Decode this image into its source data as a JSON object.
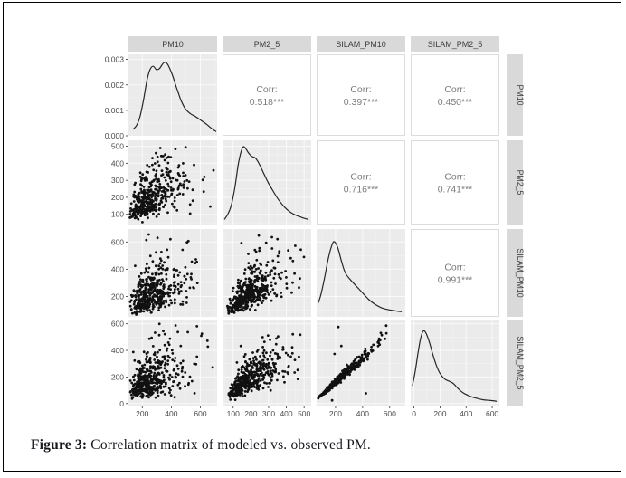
{
  "figure": {
    "caption_label": "Figure 3:",
    "caption_text": " Correlation matrix of modeled vs. observed PM."
  },
  "colors": {
    "page_bg": "#ffffff",
    "frame": "#000000",
    "panel_bg": "#ebebeb",
    "corr_panel_bg": "#ffffff",
    "corr_panel_border": "#dcdcdc",
    "strip_bg": "#d9d9d9",
    "strip_text": "#3d3d3d",
    "grid_major": "#fafafa",
    "grid_minor": "#f3f3f3",
    "point": "#111111",
    "density_line": "#262626",
    "corr_text": "#7c7c7c",
    "tick_text": "#4a4a4a",
    "tick_mark": "#333333",
    "caption_text": "#16161d"
  },
  "chart_data": {
    "type": "scatter",
    "subtype": "scatterplot-matrix (ggpairs)",
    "title": "",
    "variables": [
      "PM10",
      "PM2_5",
      "SILAM_PM10",
      "SILAM_PM2_5"
    ],
    "corr_label": "Corr:",
    "corr_cells": [
      {
        "r": 0,
        "c": 1,
        "text": "0.518***",
        "value": 0.518
      },
      {
        "r": 0,
        "c": 2,
        "text": "0.397***",
        "value": 0.397
      },
      {
        "r": 0,
        "c": 3,
        "text": "0.450***",
        "value": 0.45
      },
      {
        "r": 1,
        "c": 2,
        "text": "0.716***",
        "value": 0.716
      },
      {
        "r": 1,
        "c": 3,
        "text": "0.741***",
        "value": 0.741
      },
      {
        "r": 2,
        "c": 3,
        "text": "0.991***",
        "value": 0.991
      }
    ],
    "col_axes": [
      {
        "variable": "PM10",
        "range": [
          105,
          715
        ],
        "ticks": [
          {
            "v": 200,
            "label": "200"
          },
          {
            "v": 400,
            "label": "400"
          },
          {
            "v": 600,
            "label": "600"
          }
        ]
      },
      {
        "variable": "PM2_5",
        "range": [
          40,
          540
        ],
        "ticks": [
          {
            "v": 100,
            "label": "100"
          },
          {
            "v": 200,
            "label": "200"
          },
          {
            "v": 300,
            "label": "300"
          },
          {
            "v": 400,
            "label": "400"
          },
          {
            "v": 500,
            "label": "500"
          }
        ]
      },
      {
        "variable": "SILAM_PM10",
        "range": [
          60,
          715
        ],
        "ticks": [
          {
            "v": 200,
            "label": "200"
          },
          {
            "v": 400,
            "label": "400"
          },
          {
            "v": 600,
            "label": "600"
          }
        ]
      },
      {
        "variable": "SILAM_PM2_5",
        "range": [
          -25,
          655
        ],
        "ticks": [
          {
            "v": 0,
            "label": "0"
          },
          {
            "v": 200,
            "label": "200"
          },
          {
            "v": 400,
            "label": "400"
          },
          {
            "v": 600,
            "label": "600"
          }
        ]
      }
    ],
    "row_axes": [
      {
        "variable": "PM10",
        "axis": "density",
        "range": [
          0,
          0.0032
        ],
        "ticks": [
          {
            "v": 0,
            "label": "0.000"
          },
          {
            "v": 0.001,
            "label": "0.001"
          },
          {
            "v": 0.002,
            "label": "0.002"
          },
          {
            "v": 0.003,
            "label": "0.003"
          }
        ]
      },
      {
        "variable": "PM2_5",
        "range": [
          40,
          535
        ],
        "ticks": [
          {
            "v": 100,
            "label": "100"
          },
          {
            "v": 200,
            "label": "200"
          },
          {
            "v": 300,
            "label": "300"
          },
          {
            "v": 400,
            "label": "400"
          },
          {
            "v": 500,
            "label": "500"
          }
        ]
      },
      {
        "variable": "SILAM_PM10",
        "range": [
          50,
          695
        ],
        "ticks": [
          {
            "v": 200,
            "label": "200"
          },
          {
            "v": 400,
            "label": "400"
          },
          {
            "v": 600,
            "label": "600"
          }
        ]
      },
      {
        "variable": "SILAM_PM2_5",
        "range": [
          -15,
          625
        ],
        "ticks": [
          {
            "v": 0,
            "label": "0"
          },
          {
            "v": 200,
            "label": "200"
          },
          {
            "v": 400,
            "label": "400"
          },
          {
            "v": 600,
            "label": "600"
          }
        ]
      }
    ],
    "densities": {
      "PM10": [
        [
          0.05,
          0.05
        ],
        [
          0.09,
          0.1
        ],
        [
          0.13,
          0.22
        ],
        [
          0.17,
          0.45
        ],
        [
          0.21,
          0.72
        ],
        [
          0.245,
          0.86
        ],
        [
          0.28,
          0.9
        ],
        [
          0.315,
          0.855
        ],
        [
          0.35,
          0.87
        ],
        [
          0.4,
          0.95
        ],
        [
          0.44,
          0.93
        ],
        [
          0.49,
          0.8
        ],
        [
          0.54,
          0.62
        ],
        [
          0.59,
          0.45
        ],
        [
          0.64,
          0.33
        ],
        [
          0.7,
          0.26
        ],
        [
          0.76,
          0.22
        ],
        [
          0.82,
          0.17
        ],
        [
          0.88,
          0.12
        ],
        [
          0.94,
          0.06
        ],
        [
          0.99,
          0.02
        ]
      ],
      "PM2_5": [
        [
          0.02,
          0.03
        ],
        [
          0.06,
          0.1
        ],
        [
          0.1,
          0.22
        ],
        [
          0.14,
          0.45
        ],
        [
          0.18,
          0.76
        ],
        [
          0.22,
          0.95
        ],
        [
          0.25,
          0.97
        ],
        [
          0.29,
          0.9
        ],
        [
          0.33,
          0.85
        ],
        [
          0.37,
          0.83
        ],
        [
          0.41,
          0.76
        ],
        [
          0.46,
          0.64
        ],
        [
          0.51,
          0.52
        ],
        [
          0.57,
          0.4
        ],
        [
          0.63,
          0.29
        ],
        [
          0.7,
          0.19
        ],
        [
          0.77,
          0.12
        ],
        [
          0.84,
          0.08
        ],
        [
          0.91,
          0.05
        ],
        [
          0.97,
          0.03
        ]
      ],
      "SILAM_PM10": [
        [
          0.02,
          0.14
        ],
        [
          0.05,
          0.25
        ],
        [
          0.09,
          0.45
        ],
        [
          0.13,
          0.68
        ],
        [
          0.17,
          0.85
        ],
        [
          0.2,
          0.9
        ],
        [
          0.24,
          0.82
        ],
        [
          0.28,
          0.66
        ],
        [
          0.32,
          0.52
        ],
        [
          0.37,
          0.44
        ],
        [
          0.42,
          0.38
        ],
        [
          0.47,
          0.32
        ],
        [
          0.53,
          0.25
        ],
        [
          0.59,
          0.18
        ],
        [
          0.66,
          0.12
        ],
        [
          0.73,
          0.08
        ],
        [
          0.81,
          0.055
        ],
        [
          0.89,
          0.04
        ],
        [
          0.96,
          0.03
        ]
      ],
      "SILAM_PM2_5": [
        [
          0.02,
          0.22
        ],
        [
          0.05,
          0.4
        ],
        [
          0.08,
          0.62
        ],
        [
          0.11,
          0.82
        ],
        [
          0.14,
          0.92
        ],
        [
          0.17,
          0.9
        ],
        [
          0.21,
          0.78
        ],
        [
          0.25,
          0.62
        ],
        [
          0.29,
          0.48
        ],
        [
          0.33,
          0.38
        ],
        [
          0.38,
          0.31
        ],
        [
          0.43,
          0.28
        ],
        [
          0.48,
          0.25
        ],
        [
          0.53,
          0.19
        ],
        [
          0.59,
          0.13
        ],
        [
          0.66,
          0.09
        ],
        [
          0.74,
          0.06
        ],
        [
          0.82,
          0.04
        ],
        [
          0.9,
          0.03
        ],
        [
          0.97,
          0.02
        ]
      ]
    },
    "scatter": {
      "n": 430,
      "seed": 42,
      "point_radius": 1.4,
      "marginals": {
        "PM10": {
          "loc": 255,
          "scale": 92,
          "skew": 0.38,
          "clip": [
            115,
            705
          ]
        },
        "PM2_5": {
          "loc": 190,
          "scale": 78,
          "skew": 0.42,
          "clip": [
            50,
            515
          ]
        },
        "SILAM_PM10": {
          "loc": 220,
          "scale": 98,
          "skew": 0.45,
          "clip": [
            65,
            685
          ]
        },
        "SILAM_PM2_5": {
          "loc": 180,
          "scale": 92,
          "skew": 0.45,
          "clip": [
            10,
            610
          ]
        }
      },
      "pairs": [
        {
          "r": 1,
          "c": 0,
          "x": "PM10",
          "y": "PM2_5",
          "rho": 0.518
        },
        {
          "r": 2,
          "c": 0,
          "x": "PM10",
          "y": "SILAM_PM10",
          "rho": 0.397
        },
        {
          "r": 2,
          "c": 1,
          "x": "PM2_5",
          "y": "SILAM_PM10",
          "rho": 0.716
        },
        {
          "r": 3,
          "c": 0,
          "x": "PM10",
          "y": "SILAM_PM2_5",
          "rho": 0.45
        },
        {
          "r": 3,
          "c": 1,
          "x": "PM2_5",
          "y": "SILAM_PM2_5",
          "rho": 0.741
        },
        {
          "r": 3,
          "c": 2,
          "x": "SILAM_PM10",
          "y": "SILAM_PM2_5",
          "rho": 0.991
        }
      ]
    }
  }
}
